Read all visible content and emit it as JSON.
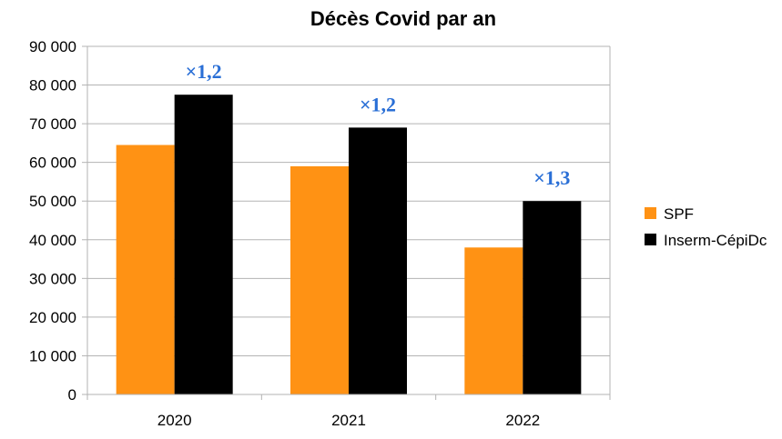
{
  "chart_data": {
    "type": "bar",
    "title": "Décès Covid par an",
    "categories": [
      "2020",
      "2021",
      "2022"
    ],
    "series": [
      {
        "name": "SPF",
        "values": [
          64500,
          59000,
          38000
        ],
        "color": "#ff9214"
      },
      {
        "name": "Inserm-CépiDc",
        "values": [
          77500,
          69000,
          50000
        ],
        "color": "#000000"
      }
    ],
    "ylim": [
      0,
      90000
    ],
    "yticks": [
      0,
      10000,
      20000,
      30000,
      40000,
      50000,
      60000,
      70000,
      80000,
      90000
    ],
    "ytick_labels": [
      "0",
      "10 000",
      "20 000",
      "30 000",
      "40 000",
      "50 000",
      "60 000",
      "70 000",
      "80 000",
      "90 000"
    ],
    "annotations": [
      "×1,2",
      "×1,2",
      "×1,3"
    ],
    "annotation_color": "#2a6fd6",
    "grid": true,
    "grid_color": "#b3b3b3",
    "legend_position": "right",
    "xlabel": "",
    "ylabel": ""
  }
}
